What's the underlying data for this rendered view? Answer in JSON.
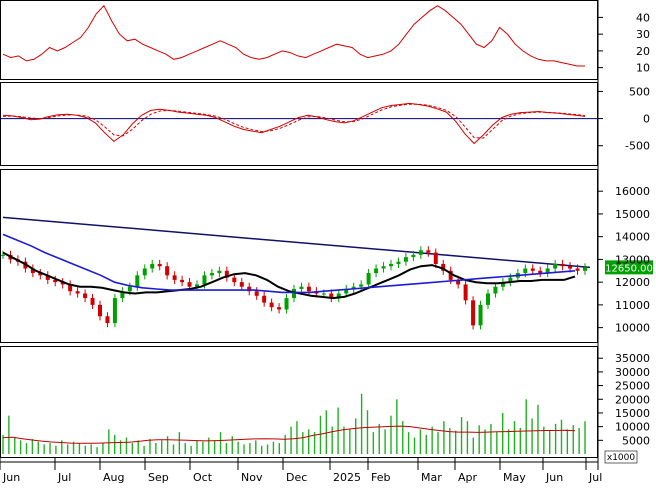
{
  "colors": {
    "background": "#ffffff",
    "border": "#000000",
    "red_line": "#d40000",
    "candle_up": "#00a000",
    "candle_down": "#d00000",
    "ma_black": "#000000",
    "ma_blue": "#1c1cd8",
    "trend_navy": "#10106a",
    "volume_bar": "#22b022",
    "volume_ma": "#c00000",
    "price_tag_bg": "#00a000",
    "price_tag_text": "#ffffff",
    "zero_line": "#000080"
  },
  "chart_data": [
    {
      "type": "line",
      "panel": "oscillator",
      "y_ticks": [
        "40",
        "30",
        "20",
        "10"
      ],
      "ylim": [
        5,
        48
      ],
      "series": [
        {
          "values": [
            18,
            16,
            17,
            14,
            15,
            18,
            22,
            20,
            22,
            25,
            28,
            34,
            42,
            47,
            38,
            30,
            26,
            27,
            24,
            22,
            20,
            18,
            15,
            16,
            18,
            20,
            22,
            24,
            26,
            24,
            22,
            18,
            16,
            15,
            16,
            18,
            20,
            19,
            17,
            16,
            18,
            20,
            22,
            24,
            23,
            22,
            18,
            16,
            17,
            18,
            20,
            24,
            30,
            36,
            40,
            44,
            47,
            44,
            40,
            36,
            30,
            24,
            22,
            26,
            34,
            30,
            24,
            20,
            17,
            15,
            14,
            14,
            13,
            12,
            11,
            11
          ]
        }
      ]
    },
    {
      "type": "line",
      "panel": "macd",
      "y_ticks": [
        "500",
        "0",
        "-500"
      ],
      "ylim": [
        -800,
        600
      ],
      "series": [
        {
          "values": [
            60,
            50,
            20,
            -20,
            -10,
            40,
            70,
            80,
            60,
            20,
            -80,
            -260,
            -420,
            -300,
            -100,
            60,
            150,
            170,
            150,
            120,
            100,
            80,
            60,
            20,
            -60,
            -140,
            -200,
            -230,
            -260,
            -200,
            -140,
            -60,
            20,
            60,
            30,
            -20,
            -60,
            -80,
            -40,
            40,
            120,
            200,
            240,
            260,
            280,
            260,
            230,
            180,
            120,
            -50,
            -280,
            -460,
            -300,
            -120,
            20,
            80,
            110,
            120,
            130,
            110,
            100,
            80,
            60,
            40
          ]
        },
        {
          "values": [
            40,
            45,
            35,
            10,
            0,
            20,
            50,
            65,
            65,
            45,
            -20,
            -150,
            -300,
            -320,
            -200,
            -40,
            80,
            140,
            150,
            135,
            115,
            95,
            75,
            45,
            -10,
            -90,
            -160,
            -205,
            -240,
            -225,
            -180,
            -110,
            -30,
            30,
            40,
            10,
            -30,
            -60,
            -55,
            0,
            80,
            160,
            215,
            245,
            265,
            265,
            245,
            205,
            150,
            40,
            -150,
            -350,
            -360,
            -200,
            -40,
            50,
            90,
            110,
            120,
            115,
            105,
            90,
            75,
            55
          ]
        }
      ]
    },
    {
      "type": "candlestick",
      "panel": "price",
      "y_ticks": [
        "16000",
        "15000",
        "14000",
        "13000",
        "12000",
        "11000",
        "10000"
      ],
      "ylim": [
        9500,
        16800
      ],
      "last_price_label": "12650.00",
      "close": [
        13200,
        13000,
        12900,
        12600,
        12400,
        12300,
        12100,
        12000,
        11900,
        11600,
        11500,
        11300,
        11000,
        10500,
        10200,
        11300,
        11600,
        11800,
        12300,
        12600,
        12800,
        12700,
        12300,
        12100,
        12000,
        11800,
        11900,
        12300,
        12400,
        12500,
        12200,
        12000,
        11800,
        11600,
        11400,
        11100,
        10900,
        10800,
        11300,
        11700,
        11800,
        11600,
        11500,
        11500,
        11300,
        11500,
        11700,
        11800,
        11900,
        12400,
        12600,
        12700,
        12800,
        12900,
        13100,
        13200,
        13400,
        13300,
        12800,
        12500,
        12100,
        11900,
        11200,
        10100,
        11000,
        11500,
        11800,
        12000,
        12200,
        12400,
        12600,
        12500,
        12400,
        12600,
        12800,
        12700,
        12600,
        12500,
        12650
      ],
      "ma_black": [
        13300,
        13050,
        12800,
        12500,
        12300,
        12100,
        11900,
        11800,
        11800,
        11750,
        11650,
        11550,
        11500,
        11550,
        11550,
        11600,
        11650,
        11700,
        11800,
        12000,
        12200,
        12350,
        12400,
        12300,
        12100,
        11800,
        11600,
        11500,
        11400,
        11350,
        11300,
        11350,
        11500,
        11700,
        11900,
        12100,
        12300,
        12550,
        12700,
        12750,
        12600,
        12300,
        12100,
        12000,
        11950,
        11950,
        12000,
        12050,
        12050,
        12100,
        12100,
        12100,
        12250
      ],
      "ma_blue": [
        14100,
        13850,
        13600,
        13300,
        13050,
        12800,
        12550,
        12300,
        12000,
        11850,
        11750,
        11700,
        11650,
        11650,
        11650,
        11650,
        11650,
        11650,
        11650,
        11600,
        11550,
        11550,
        11550,
        11600,
        11650,
        11700,
        11750,
        11800,
        11850,
        11900,
        11950,
        12000,
        12050,
        12100,
        12150,
        12200,
        12250,
        12300,
        12350,
        12400,
        12450,
        12500
      ],
      "trend_line": [
        [
          0,
          14850
        ],
        [
          1,
          12650
        ]
      ]
    },
    {
      "type": "bar",
      "panel": "volume",
      "y_ticks": [
        "35000",
        "30000",
        "25000",
        "20000",
        "15000",
        "10000",
        "5000"
      ],
      "y_unit": "x1000",
      "ylim": [
        0,
        38000
      ],
      "values": [
        7000,
        14000,
        6000,
        5000,
        4000,
        5500,
        4500,
        3500,
        4000,
        3000,
        5000,
        3500,
        4500,
        4000,
        3000,
        3500,
        2500,
        4000,
        9000,
        7000,
        5000,
        6000,
        4000,
        5000,
        3000,
        5500,
        4000,
        5000,
        6500,
        3500,
        8000,
        4000,
        3000,
        5000,
        4500,
        6000,
        5000,
        8000,
        4000,
        6500,
        4500,
        3500,
        4000,
        5000,
        3000,
        3500,
        4500,
        4000,
        7000,
        10000,
        12000,
        8000,
        9000,
        8000,
        14000,
        16000,
        10000,
        17000,
        10000,
        9000,
        13000,
        22000,
        16000,
        8000,
        11000,
        9000,
        14000,
        20000,
        12000,
        8000,
        6000,
        9000,
        7000,
        10000,
        8000,
        12000,
        9500,
        8500,
        13500,
        12000,
        6000,
        10500,
        9000,
        11000,
        8000,
        15000,
        9000,
        12000,
        9500,
        20000,
        13000,
        18000,
        10000,
        8500,
        11000,
        12500,
        9000,
        10500,
        9500,
        12000
      ],
      "ma_values": [
        6000,
        6100,
        5600,
        5100,
        4700,
        4400,
        4200,
        4000,
        3900,
        3900,
        4000,
        4100,
        4200,
        4300,
        4600,
        5000,
        5200,
        5200,
        5100,
        5000,
        4900,
        4800,
        4900,
        5000,
        5200,
        5400,
        5500,
        5600,
        5500,
        5400,
        5600,
        6000,
        6800,
        7400,
        8200,
        8800,
        9200,
        9600,
        9800,
        9900,
        10100,
        10200,
        10000,
        9500,
        9000,
        8600,
        8200,
        8000,
        8000,
        7900,
        8000,
        8100,
        8200,
        8300,
        8400,
        8500,
        8600,
        8600,
        8700,
        8500
      ]
    }
  ],
  "x_axis": {
    "labels": [
      "Jun",
      "Jul",
      "Aug",
      "Sep",
      "Oct",
      "Nov",
      "Dec",
      "2025",
      "Feb",
      "Mar",
      "Apr",
      "May",
      "Jun",
      "Jul"
    ]
  }
}
